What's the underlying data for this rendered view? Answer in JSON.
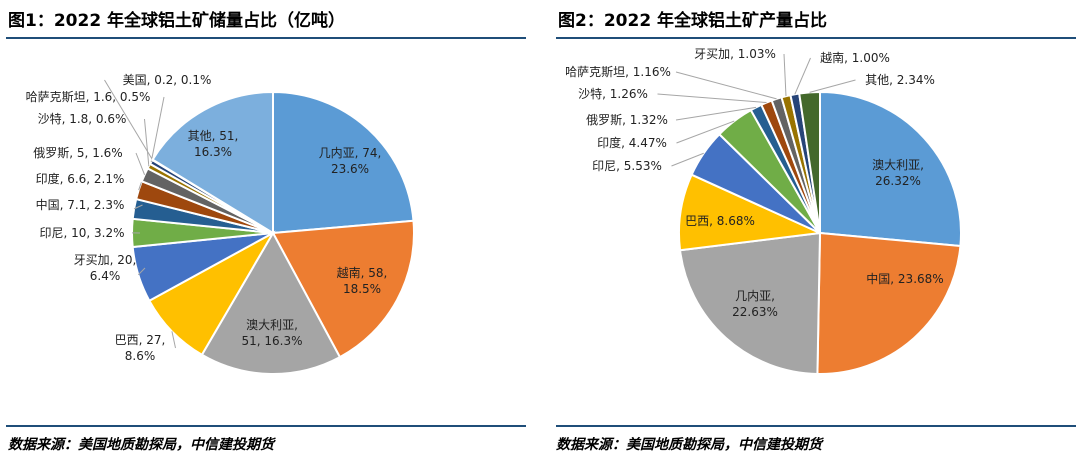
{
  "source": "数据来源：美国地质勘探局，中信建投期货",
  "chart_data": [
    {
      "type": "pie",
      "title": "图1：2022 年全球铝土矿储量占比（亿吨）",
      "categories": [
        "几内亚",
        "越南",
        "澳大利亚",
        "巴西",
        "牙买加",
        "印尼",
        "中国",
        "印度",
        "俄罗斯",
        "沙特",
        "哈萨克斯坦",
        "美国",
        "其他"
      ],
      "values": [
        74,
        58,
        51,
        27,
        20,
        10,
        7.1,
        6.6,
        5,
        1.8,
        1.6,
        0.2,
        51
      ],
      "percents": [
        23.6,
        18.5,
        16.3,
        8.6,
        6.4,
        3.2,
        2.3,
        2.1,
        1.6,
        0.6,
        0.5,
        0.1,
        16.3
      ],
      "colors": [
        "#5B9BD5",
        "#ED7D31",
        "#A5A5A5",
        "#FFC000",
        "#4472C4",
        "#70AD47",
        "#255E91",
        "#9E480E",
        "#636363",
        "#997300",
        "#264478",
        "#43682B",
        "#7CAFDD"
      ],
      "labels": [
        [
          "几内亚, 74,",
          "23.6%"
        ],
        [
          "越南, 58,",
          "18.5%"
        ],
        [
          "澳大利亚,",
          "51, 16.3%"
        ],
        [
          "巴西, 27,",
          "8.6%"
        ],
        [
          "牙买加, 20,",
          "6.4%"
        ],
        [
          "印尼, 10, 3.2%"
        ],
        [
          "中国, 7.1, 2.3%"
        ],
        [
          "印度, 6.6, 2.1%"
        ],
        [
          "俄罗斯, 5, 1.6%"
        ],
        [
          "沙特, 1.8, 0.6%"
        ],
        [
          "哈萨克斯坦, 1.6, 0.5%"
        ],
        [
          "美国, 0.2, 0.1%"
        ],
        [
          "其他, 51,",
          "16.3%"
        ]
      ]
    },
    {
      "type": "pie",
      "title": "图2：2022 年全球铝土矿产量占比",
      "categories": [
        "澳大利亚",
        "中国",
        "几内亚",
        "巴西",
        "印尼",
        "印度",
        "俄罗斯",
        "沙特",
        "哈萨克斯坦",
        "牙买加",
        "越南",
        "其他"
      ],
      "percents": [
        26.32,
        23.68,
        22.63,
        8.68,
        5.53,
        4.47,
        1.32,
        1.26,
        1.16,
        1.03,
        1.0,
        2.34
      ],
      "colors": [
        "#5B9BD5",
        "#ED7D31",
        "#A5A5A5",
        "#FFC000",
        "#4472C4",
        "#70AD47",
        "#255E91",
        "#9E480E",
        "#636363",
        "#997300",
        "#264478",
        "#43682B"
      ],
      "labels": [
        [
          "澳大利亚,",
          "26.32%"
        ],
        [
          "中国, 23.68%"
        ],
        [
          "几内亚,",
          "22.63%"
        ],
        [
          "巴西, 8.68%"
        ],
        [
          "印尼, 5.53%"
        ],
        [
          "印度, 4.47%"
        ],
        [
          "俄罗斯, 1.32%"
        ],
        [
          "沙特, 1.26%"
        ],
        [
          "哈萨克斯坦, 1.16%"
        ],
        [
          "牙买加, 1.03%"
        ],
        [
          "越南, 1.00%"
        ],
        [
          "其他, 2.34%"
        ]
      ]
    }
  ]
}
